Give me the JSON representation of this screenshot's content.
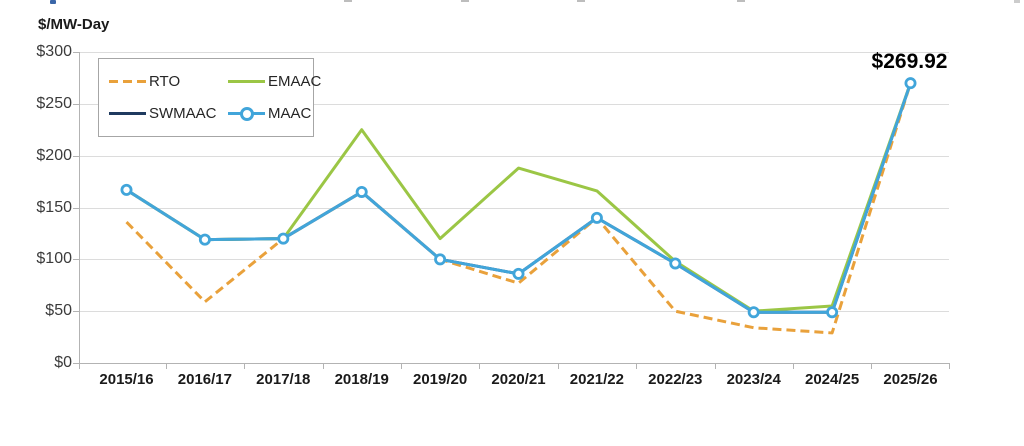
{
  "unit_label": "$/MW-Day",
  "chart_data": {
    "type": "line",
    "title": "",
    "ylabel": "$/MW-Day",
    "xlabel": "",
    "categories": [
      "2015/16",
      "2016/17",
      "2017/18",
      "2018/19",
      "2019/20",
      "2020/21",
      "2021/22",
      "2022/23",
      "2023/24",
      "2024/25",
      "2025/26"
    ],
    "ylim": [
      0,
      300
    ],
    "yticks": [
      {
        "label": "$300",
        "value": 300
      },
      {
        "label": "$250",
        "value": 250
      },
      {
        "label": "$200",
        "value": 200
      },
      {
        "label": "$150",
        "value": 150
      },
      {
        "label": "$100",
        "value": 100
      },
      {
        "label": "$50",
        "value": 50
      },
      {
        "label": "$0",
        "value": 0
      }
    ],
    "grid": "horizontal",
    "legend_position": "top-left-inside",
    "draw_order": [
      "SWMAAC",
      "RTO",
      "EMAAC",
      "MAAC"
    ],
    "series": [
      {
        "name": "RTO",
        "color": "#e9a13b",
        "line_style": "dashed",
        "marker": "none",
        "values": [
          136,
          59,
          120,
          165,
          100,
          77,
          140,
          50,
          34,
          29,
          269.92
        ]
      },
      {
        "name": "EMAAC",
        "color": "#9bc645",
        "line_style": "solid",
        "marker": "none",
        "values": [
          167,
          119,
          120,
          225,
          120,
          188,
          166,
          98,
          50,
          55,
          269.92
        ]
      },
      {
        "name": "SWMAAC",
        "color": "#1f3a5f",
        "line_style": "solid",
        "marker": "none",
        "values": [
          167,
          119,
          120,
          165,
          100,
          86,
          140,
          96,
          49,
          49,
          269.92
        ]
      },
      {
        "name": "MAAC",
        "color": "#41a5da",
        "line_style": "solid",
        "marker": "circle",
        "values": [
          167,
          119,
          120,
          165,
          100,
          86,
          140,
          96,
          49,
          49,
          269.92
        ]
      }
    ],
    "annotation": {
      "text": "$269.92",
      "value": 269.92,
      "category": "2025/26",
      "series": "MAAC"
    }
  },
  "legend": {
    "items": [
      {
        "label": "RTO",
        "series": "RTO"
      },
      {
        "label": "EMAAC",
        "series": "EMAAC"
      },
      {
        "label": "SWMAAC",
        "series": "SWMAAC"
      },
      {
        "label": "MAAC",
        "series": "MAAC"
      }
    ]
  }
}
